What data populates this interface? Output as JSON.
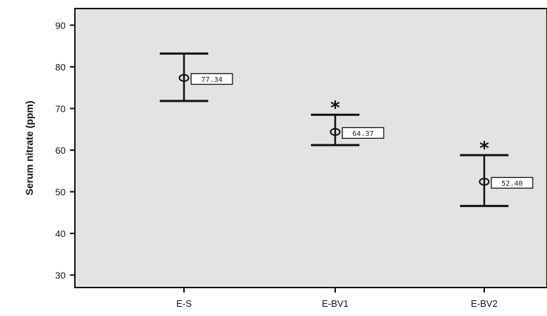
{
  "chart_data": {
    "type": "errorbar",
    "title": "",
    "xlabel": "",
    "ylabel": "Serum nitrate (ppm)",
    "ylim": [
      27,
      94
    ],
    "yticks": [
      30,
      40,
      50,
      60,
      70,
      80,
      90
    ],
    "grid": false,
    "categories": [
      "E-S",
      "E-BV1",
      "E-BV2"
    ],
    "means": [
      77.34,
      64.37,
      52.4
    ],
    "mean_labels": [
      "77.34",
      "64.37",
      "52.40"
    ],
    "upper": [
      83.2,
      68.5,
      58.8
    ],
    "lower": [
      71.8,
      61.2,
      46.6
    ],
    "significance": [
      "",
      "*",
      "*"
    ],
    "plot_background": "#e3e3e3",
    "line_color": "#111111"
  }
}
